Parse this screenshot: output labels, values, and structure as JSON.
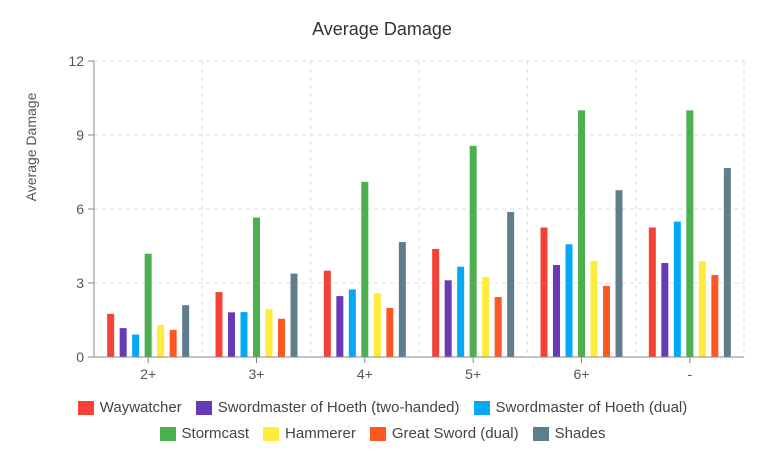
{
  "chart_data": {
    "type": "bar",
    "title": "Average Damage",
    "xlabel": "",
    "ylabel": "Average Damage",
    "ylim": [
      0,
      12
    ],
    "yticks": [
      0,
      3,
      6,
      9,
      12
    ],
    "grid": true,
    "legend_position": "bottom",
    "categories": [
      "2+",
      "3+",
      "4+",
      "5+",
      "6+",
      "-"
    ],
    "series": [
      {
        "name": "Waywatcher",
        "color": "#f44336",
        "values": [
          1.75,
          2.63,
          3.5,
          4.38,
          5.25,
          5.25
        ]
      },
      {
        "name": "Swordmaster of Hoeth (two-handed)",
        "color": "#673ab7",
        "values": [
          1.17,
          1.81,
          2.47,
          3.11,
          3.73,
          3.81
        ]
      },
      {
        "name": "Swordmaster of Hoeth (dual)",
        "color": "#03a9f4",
        "values": [
          0.91,
          1.82,
          2.74,
          3.66,
          4.57,
          5.49
        ]
      },
      {
        "name": "Stormcast",
        "color": "#4caf50",
        "values": [
          4.19,
          5.65,
          7.1,
          8.56,
          10.0,
          10.0
        ]
      },
      {
        "name": "Hammerer",
        "color": "#ffeb3b",
        "values": [
          1.3,
          1.94,
          2.59,
          3.24,
          3.89,
          3.89
        ]
      },
      {
        "name": "Great Sword (dual)",
        "color": "#ff5722",
        "values": [
          1.1,
          1.55,
          1.99,
          2.43,
          2.88,
          3.32
        ]
      },
      {
        "name": "Shades",
        "color": "#607d8b",
        "values": [
          2.1,
          3.38,
          4.66,
          5.88,
          6.76,
          7.66
        ]
      }
    ]
  }
}
